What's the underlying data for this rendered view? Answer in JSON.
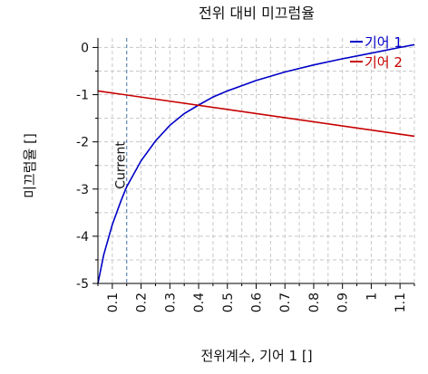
{
  "chart_data": {
    "type": "line",
    "title": "전위 대비 미끄럼율",
    "xlabel": "전위계수, 기어 1 []",
    "ylabel": "미끄럼율 []",
    "xlim": [
      0.05,
      1.15
    ],
    "ylim": [
      -5,
      0.2
    ],
    "x_ticks": [
      0.1,
      0.2,
      0.3,
      0.4,
      0.5,
      0.6,
      0.7,
      0.8,
      0.9,
      1,
      1.1
    ],
    "x_tick_labels": [
      "0.1",
      "0.2",
      "0.3",
      "0.4",
      "0.5",
      "0.6",
      "0.7",
      "0.8",
      "0.9",
      "1",
      "1.1"
    ],
    "y_ticks": [
      0,
      -1,
      -2,
      -3,
      -4,
      -5
    ],
    "y_tick_labels": [
      "0",
      "-1",
      "-2",
      "-3",
      "-4",
      "-5"
    ],
    "grid": true,
    "legend_position": "top-right",
    "series": [
      {
        "name": "기어 1",
        "color": "#0000c8",
        "x": [
          0.05,
          0.07,
          0.1,
          0.13,
          0.15,
          0.2,
          0.25,
          0.3,
          0.35,
          0.4,
          0.45,
          0.5,
          0.6,
          0.7,
          0.8,
          0.9,
          1.0,
          1.1,
          1.15
        ],
        "y": [
          -5.0,
          -4.4,
          -3.75,
          -3.25,
          -2.95,
          -2.4,
          -1.98,
          -1.65,
          -1.4,
          -1.22,
          -1.05,
          -0.92,
          -0.7,
          -0.52,
          -0.37,
          -0.24,
          -0.12,
          0.0,
          0.06
        ]
      },
      {
        "name": "기어 2",
        "color": "#c80000",
        "x": [
          0.05,
          1.15
        ],
        "y": [
          -0.92,
          -1.88
        ]
      }
    ],
    "annotations": [
      {
        "type": "vline",
        "x": 0.15,
        "label": "Current",
        "color": "#4a7fb5"
      }
    ]
  }
}
